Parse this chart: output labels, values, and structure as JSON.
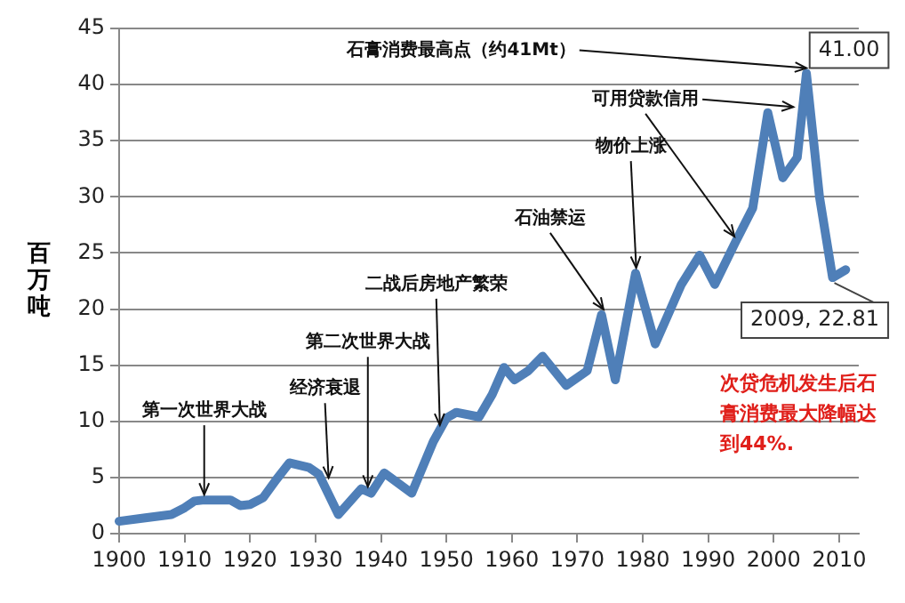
{
  "chart_data": {
    "type": "line",
    "ylabel": "百万吨",
    "series": [
      {
        "color": "#4f7fb8",
        "x": [
          1900,
          1904,
          1908,
          1910,
          1911.5,
          1913,
          1917,
          1918.5,
          1920,
          1922,
          1924,
          1926,
          1929,
          1930.5,
          1933.5,
          1937,
          1938.5,
          1940.5,
          1944.7,
          1948,
          1950,
          1951.5,
          1955,
          1957,
          1958.8,
          1960.4,
          1962.5,
          1964.7,
          1968.3,
          1971.5,
          1973.7,
          1975.8,
          1978.9,
          1981.9,
          1985.9,
          1988.7,
          1991,
          1994.1,
          1996.8,
          1999.1,
          2001.4,
          2003.6,
          2005,
          2007,
          2009,
          2011
        ],
        "values": [
          1.1,
          1.4,
          1.7,
          2.3,
          2.9,
          3,
          3,
          2.5,
          2.6,
          3.2,
          4.8,
          6.3,
          5.9,
          5.3,
          1.7,
          4,
          3.6,
          5.4,
          3.6,
          8.2,
          10.3,
          10.8,
          10.4,
          12.4,
          14.8,
          13.7,
          14.5,
          15.8,
          13.2,
          14.5,
          19.5,
          13.7,
          23.2,
          16.9,
          22.2,
          24.8,
          22.2,
          25.9,
          29,
          37.5,
          31.7,
          33.5,
          41,
          30,
          22.81,
          23.5
        ]
      }
    ],
    "xlim": [
      1900,
      2013
    ],
    "xticks": [
      1900,
      1910,
      1920,
      1930,
      1940,
      1950,
      1960,
      1970,
      1980,
      1990,
      2000,
      2010
    ],
    "ylim": [
      0,
      45
    ],
    "yticks": [
      0,
      5,
      10,
      15,
      20,
      25,
      30,
      35,
      40,
      45
    ],
    "grid": "y",
    "legend": false,
    "marker": "none",
    "line_style": "solid",
    "annotations": [
      {
        "text": "第一次世界大战",
        "x": 1913,
        "y": 3
      },
      {
        "text": "经济衰退",
        "x": 1932,
        "y": 4.5
      },
      {
        "text": "第二次世界大战",
        "x": 1938,
        "y": 3.7
      },
      {
        "text": "二战后房地产繁荣",
        "x": 1949,
        "y": 9.2
      },
      {
        "text": "石油禁运",
        "x": 1974,
        "y": 19.5
      },
      {
        "text": "物价上涨",
        "x": 1979,
        "y": 23.2
      },
      {
        "text": "可用贷款信用",
        "x": 1994,
        "y": 26
      },
      {
        "text": "石膏消费最高点（约41Mt）",
        "x": 2005,
        "y": 41
      },
      {
        "text": "41.00",
        "x": 2005,
        "y": 41
      },
      {
        "text": "2009, 22.81",
        "x": 2009,
        "y": 22.81
      },
      "次贷危机发生后石膏消费最大降幅达到44%."
    ]
  }
}
